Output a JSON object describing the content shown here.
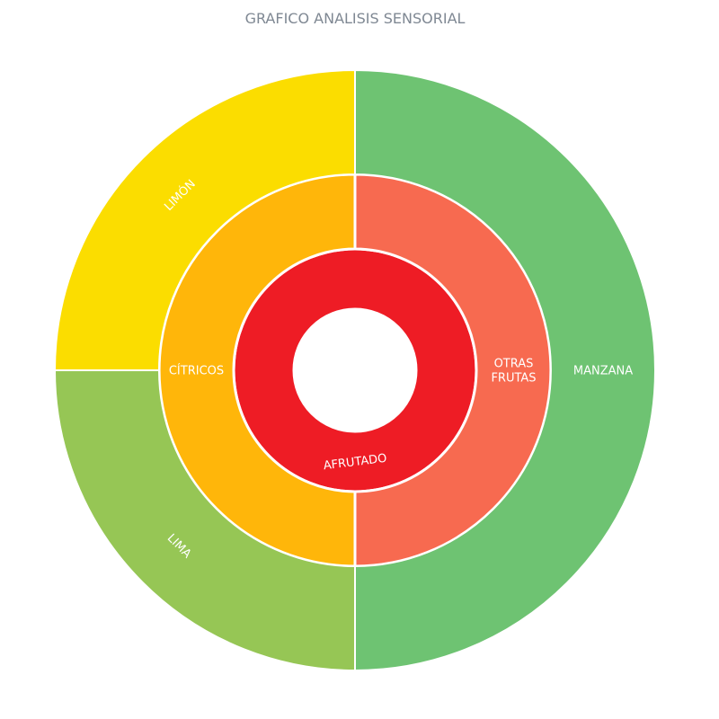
{
  "chart_data": {
    "type": "sunburst",
    "title": "GRAFICO ANALISIS SENSORIAL",
    "rings": [
      [
        {
          "label": "AFRUTADO",
          "value": 4,
          "color": "#ee1c25"
        }
      ],
      [
        {
          "label": "OTRAS FRUTAS",
          "value": 2,
          "color": "#f76a50",
          "parent": "AFRUTADO"
        },
        {
          "label": "CÍTRICOS",
          "value": 2,
          "color": "#ffb60a",
          "parent": "AFRUTADO"
        }
      ],
      [
        {
          "label": "MANZANA",
          "value": 2,
          "color": "#6ec372",
          "parent": "OTRAS FRUTAS"
        },
        {
          "label": "LIMA",
          "value": 1,
          "color": "#96c655",
          "parent": "CÍTRICOS"
        },
        {
          "label": "LIMÓN",
          "value": 1,
          "color": "#fbdd00",
          "parent": "CÍTRICOS"
        }
      ]
    ]
  }
}
